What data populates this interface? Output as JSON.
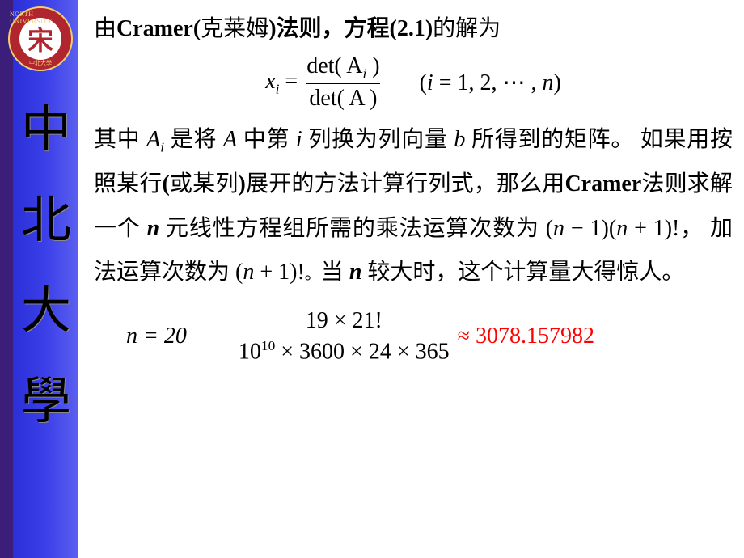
{
  "layout": {
    "slide_width": 920,
    "slide_height": 690,
    "sidebar": {
      "stripe_purple_color": "#3a1e7a",
      "stripe_blue_gradient": [
        "#2a2fd8",
        "#3b3fe8",
        "#5a5ff0"
      ]
    },
    "background_color": "#ffffff"
  },
  "logo": {
    "ring_color": "#b0252e",
    "ring_border": "#f0d070",
    "inner_bg": "#ffffff",
    "inner_char": "宋",
    "top_text": "NORTH UNIVERSITY",
    "bottom_text": "中北大學"
  },
  "vertical_title": {
    "chars": [
      "中",
      "北",
      "大",
      "學"
    ],
    "color": "#000000",
    "font_family": "STXingkai"
  },
  "content": {
    "line1_pre": "由",
    "line1_cramer": "Cramer(",
    "line1_klm": "克莱姆",
    "line1_rule": ")法则，方程",
    "line1_eq": "(2.1)",
    "line1_post": "的解为",
    "formula1": {
      "lhs_var": "x",
      "lhs_sub": "i",
      "eq": "=",
      "num": "det( A",
      "num_sub": "i",
      "num_close": " )",
      "den": "det( A )",
      "range_open": "(",
      "range_var": "i",
      "range_eq": " = 1, 2, ⋯ , ",
      "range_n": "n",
      "range_close": ")"
    },
    "para": {
      "p1": "其中 ",
      "Ai_A": "A",
      "Ai_i": "i",
      "p2": " 是将 ",
      "A": "A",
      "p3": " 中第 ",
      "i": "i",
      "p4": " 列换为列向量 ",
      "b": "b",
      "p5": " 所得到的矩阵。 如果用按照某行",
      "paren1": "(",
      "p5b": "或某列",
      "paren2": ")",
      "p5c": "展开的方法计算行列式，那么用",
      "cramer2": "Cramer",
      "p6": "法则求解一个 ",
      "n1": "n",
      "p7": " 元线性方程组所需的乘法运算次数为 ",
      "mult": "(n − 1)(n + 1)!",
      "p8": "， 加法运算次数为 ",
      "add": "(n + 1)!",
      "p9": "。当 ",
      "n2": "n",
      "p10": " 较大时，这个计算量大得惊人。"
    },
    "formula2": {
      "n_eq": "n = 20",
      "num": "19 × 21!",
      "den_base": "10",
      "den_exp": "10",
      "den_rest": " × 3600 × 24 × 365",
      "approx": "≈ 3078.157982",
      "result_color": "#ff0000"
    }
  },
  "typography": {
    "body_fontsize_pt": 21,
    "body_color": "#000000",
    "chinese_font": "KaiTi",
    "latin_font": "Times New Roman"
  }
}
